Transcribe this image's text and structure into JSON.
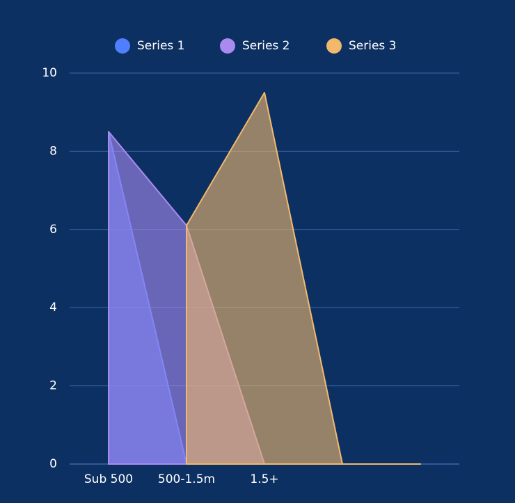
{
  "chart_data": {
    "type": "area",
    "categories": [
      "Sub 500",
      "500-1.5m",
      "1.5+",
      null,
      null
    ],
    "series": [
      {
        "name": "Series 1",
        "color": "#4f7fff",
        "values": [
          8.5,
          0,
          0,
          0,
          0
        ]
      },
      {
        "name": "Series 2",
        "color": "#a98bf0",
        "values": [
          8.5,
          6.1,
          0,
          0,
          0
        ]
      },
      {
        "name": "Series 3",
        "color": "#f2b96c",
        "values": [
          null,
          6.1,
          9.5,
          0,
          0
        ]
      }
    ],
    "ylim": [
      0,
      10
    ],
    "yticks": [
      0,
      2,
      4,
      6,
      8,
      10
    ],
    "grid": true,
    "legend": "top"
  }
}
